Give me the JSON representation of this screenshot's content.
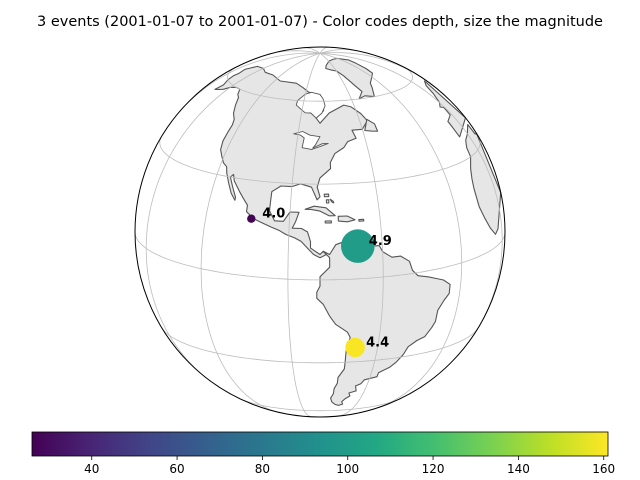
{
  "title": "3 events (2001-01-07 to 2001-01-07) - Color codes depth, size the magnitude",
  "colors": {
    "land": "#e6e6e6",
    "coast": "#555555",
    "border": "#aaaaaa",
    "grid": "#bdbdbd",
    "ocean": "#ffffff"
  },
  "projection": {
    "type": "orthographic",
    "center_lon": -80,
    "center_lat": 15
  },
  "events": [
    {
      "lon": -103.0,
      "lat": 18.0,
      "depth": 27,
      "magnitude": "4.0"
    },
    {
      "lon": -68.0,
      "lat": 10.3,
      "depth": 100,
      "magnitude": "4.9"
    },
    {
      "lon": -68.0,
      "lat": -24.0,
      "depth": 160,
      "magnitude": "4.4"
    }
  ],
  "colorbar": {
    "min": 26,
    "max": 161,
    "ticks": [
      "40",
      "60",
      "80",
      "100",
      "120",
      "140",
      "160"
    ],
    "colormap": "viridis"
  }
}
